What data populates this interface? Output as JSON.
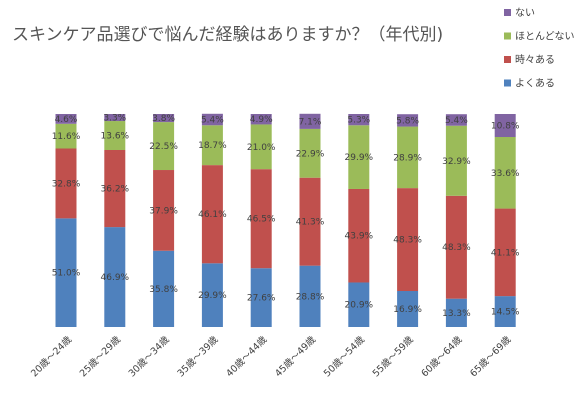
{
  "chart_data": {
    "type": "bar",
    "stacked": true,
    "percent": true,
    "title": "スキンケア品選びで悩んだ経験はありますか？（年代別)",
    "categories": [
      "20歳～24歳",
      "25歳～29歳",
      "30歳～34歳",
      "35歳～39歳",
      "40歳～44歳",
      "45歳～49歳",
      "50歳～54歳",
      "55歳～59歳",
      "60歳～64歳",
      "65歳～69歳"
    ],
    "series": [
      {
        "name": "よくある",
        "color": "#4f81bd",
        "values": [
          51.0,
          46.9,
          35.8,
          29.9,
          27.6,
          28.8,
          20.9,
          16.9,
          13.3,
          14.5
        ],
        "labels": [
          "51.0%",
          "46.9%",
          "35.8%",
          "29.9%",
          "27.6%",
          "28.8%",
          "20.9%",
          "16.9%",
          "13.3%",
          "14.5%"
        ]
      },
      {
        "name": "時々ある",
        "color": "#c0504d",
        "values": [
          32.8,
          36.2,
          37.9,
          46.1,
          46.5,
          41.3,
          43.9,
          48.3,
          48.3,
          41.1
        ],
        "labels": [
          "32.8%",
          "36.2%",
          "37.9%",
          "46.1%",
          "46.5%",
          "41.3%",
          "43.9%",
          "48.3%",
          "48.3%",
          "41.1%"
        ]
      },
      {
        "name": "ほとんどない",
        "color": "#9bbb59",
        "values": [
          11.6,
          13.6,
          22.5,
          18.7,
          21.0,
          22.9,
          29.9,
          28.9,
          32.9,
          33.6
        ],
        "labels": [
          "11.6%",
          "13.6%",
          "22.5%",
          "18.7%",
          "21.0%",
          "22.9%",
          "29.9%",
          "28.9%",
          "32.9%",
          "33.6%"
        ]
      },
      {
        "name": "ない",
        "color": "#8064a2",
        "values": [
          4.6,
          3.3,
          3.8,
          5.4,
          4.9,
          7.1,
          5.3,
          5.8,
          5.4,
          10.8
        ],
        "labels": [
          "4.6%",
          "3.3%",
          "3.8%",
          "5.4%",
          "4.9%",
          "7.1%",
          "5.3%",
          "5.8%",
          "5.4%",
          "10.8%"
        ]
      }
    ],
    "legend_order": [
      "ない",
      "ほとんどない",
      "時々ある",
      "よくある"
    ],
    "legend_position": "top-right",
    "ylim": [
      0,
      100
    ],
    "grid": false
  }
}
